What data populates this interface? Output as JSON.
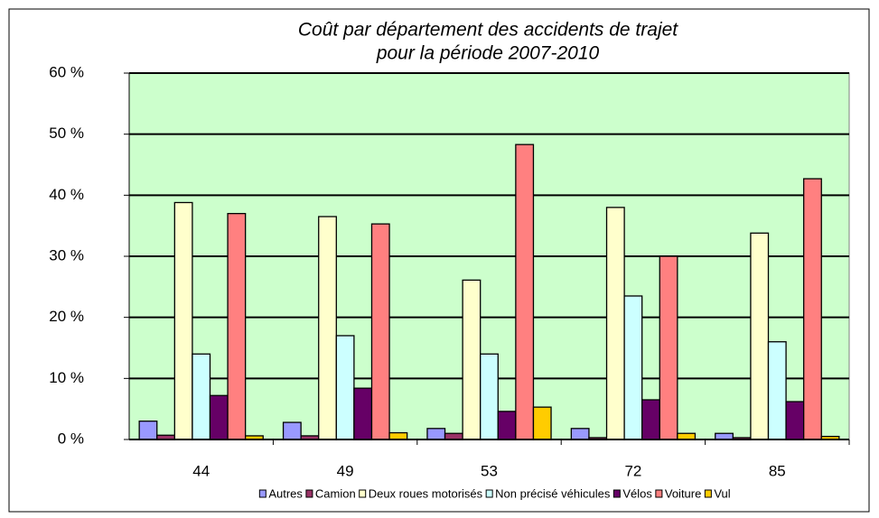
{
  "chart_data": {
    "type": "bar",
    "title": [
      "Coût par département des accidents de trajet",
      "pour la période 2007-2010"
    ],
    "categories": [
      "44",
      "49",
      "53",
      "72",
      "85"
    ],
    "series": [
      {
        "name": "Autres",
        "color": "#9999ff",
        "values": [
          3.0,
          2.8,
          1.8,
          1.8,
          1.0
        ]
      },
      {
        "name": "Camion",
        "color": "#993366",
        "values": [
          0.7,
          0.6,
          1.0,
          0.3,
          0.3
        ]
      },
      {
        "name": "Deux roues motorisés",
        "color": "#ffffcc",
        "values": [
          38.8,
          36.5,
          26.1,
          38.0,
          33.8
        ]
      },
      {
        "name": "Non précisé véhicules",
        "color": "#ccffff",
        "values": [
          14.0,
          17.0,
          14.0,
          23.5,
          16.0
        ]
      },
      {
        "name": "Vélos",
        "color": "#660066",
        "values": [
          7.2,
          8.4,
          4.6,
          6.5,
          6.2
        ]
      },
      {
        "name": "Voiture",
        "color": "#ff8080",
        "values": [
          37.0,
          35.3,
          48.3,
          30.0,
          42.7
        ]
      },
      {
        "name": "Vul",
        "color": "#ffcc00",
        "values": [
          0.6,
          1.1,
          5.3,
          1.0,
          0.5
        ]
      }
    ],
    "ylim": [
      0,
      60
    ],
    "yticks": [
      {
        "value": 0,
        "label": "0 %"
      },
      {
        "value": 10,
        "label": "10 %"
      },
      {
        "value": 20,
        "label": "20 %"
      },
      {
        "value": 30,
        "label": "30 %"
      },
      {
        "value": 40,
        "label": "40 %"
      },
      {
        "value": 50,
        "label": "50 %"
      },
      {
        "value": 60,
        "label": "60 %"
      }
    ],
    "grid": true,
    "plot_background": "#ccffcc",
    "legend": "bottom"
  }
}
